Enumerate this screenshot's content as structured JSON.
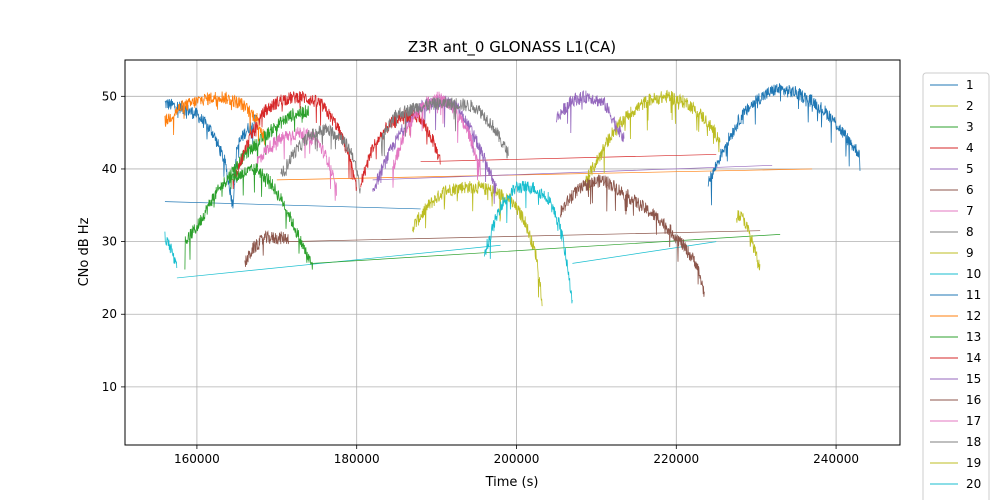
{
  "chart_data": {
    "type": "line",
    "title": "Z3R ant_0 GLONASS L1(CA)",
    "xlabel": "Time (s)",
    "ylabel": "CNo dB Hz",
    "xlim": [
      151000,
      248000
    ],
    "ylim": [
      2,
      55
    ],
    "xticks": [
      160000,
      180000,
      200000,
      220000,
      240000
    ],
    "yticks": [
      10,
      20,
      30,
      40,
      50
    ],
    "grid": true,
    "legend_position": "right-outside",
    "series": [
      {
        "name": "1",
        "color": "#1f77b4",
        "points": [
          [
            156000,
            49
          ],
          [
            158000,
            48.5
          ],
          [
            160000,
            47.5
          ],
          [
            162000,
            45
          ],
          [
            163500,
            41
          ],
          [
            164500,
            35
          ],
          [
            165000,
            43
          ],
          [
            166000,
            45
          ],
          [
            167500,
            47
          ]
        ]
      },
      {
        "name": "2",
        "color": "#bcbd22",
        "points": [
          [
            187000,
            32
          ],
          [
            189000,
            35
          ],
          [
            191000,
            37
          ],
          [
            193000,
            37.5
          ],
          [
            195000,
            37.5
          ],
          [
            197000,
            37
          ],
          [
            199000,
            36
          ],
          [
            201000,
            33
          ],
          [
            202500,
            28
          ],
          [
            203200,
            22
          ]
        ]
      },
      {
        "name": "3",
        "color": "#2ca02c",
        "points": [
          [
            158500,
            30
          ],
          [
            160000,
            32
          ],
          [
            162000,
            36
          ],
          [
            164000,
            39
          ],
          [
            166000,
            42
          ],
          [
            168000,
            44
          ],
          [
            170000,
            46
          ],
          [
            172000,
            47.5
          ],
          [
            174000,
            48
          ]
        ]
      },
      {
        "name": "4",
        "color": "#d62728",
        "points": [
          [
            164500,
            38
          ],
          [
            166500,
            44
          ],
          [
            168500,
            48
          ],
          [
            170500,
            49.5
          ],
          [
            173000,
            50
          ],
          [
            175500,
            49
          ],
          [
            177500,
            46
          ],
          [
            179000,
            42
          ],
          [
            180000,
            37
          ]
        ]
      },
      {
        "name": "5",
        "color": "#9467bd",
        "points": [
          [
            182000,
            37
          ],
          [
            184000,
            42
          ],
          [
            186000,
            46
          ],
          [
            188000,
            48.5
          ],
          [
            190500,
            49.5
          ],
          [
            192500,
            48.5
          ],
          [
            194500,
            45
          ],
          [
            196500,
            40
          ],
          [
            197500,
            37
          ]
        ]
      },
      {
        "name": "6",
        "color": "#8c564b",
        "points": [
          [
            166000,
            27
          ],
          [
            167000,
            29
          ],
          [
            168500,
            30.5
          ],
          [
            170000,
            30.5
          ],
          [
            171500,
            30.5
          ]
        ]
      },
      {
        "name": "7",
        "color": "#e377c2",
        "points": [
          [
            167500,
            41
          ],
          [
            169000,
            43
          ],
          [
            171000,
            44.5
          ],
          [
            173000,
            45
          ],
          [
            175000,
            44
          ],
          [
            176500,
            41
          ],
          [
            177500,
            37
          ]
        ]
      },
      {
        "name": "8",
        "color": "#7f7f7f",
        "points": [
          [
            170500,
            39
          ],
          [
            172000,
            42
          ],
          [
            174000,
            44.5
          ],
          [
            176000,
            45.5
          ],
          [
            178000,
            44.5
          ],
          [
            179500,
            42
          ],
          [
            180500,
            37
          ]
        ]
      },
      {
        "name": "9",
        "color": "#bcbd22",
        "points": [
          [
            208500,
            38
          ],
          [
            210000,
            41
          ],
          [
            212000,
            45
          ],
          [
            214000,
            47.5
          ],
          [
            216500,
            49.5
          ],
          [
            219000,
            50
          ],
          [
            221500,
            49
          ],
          [
            223500,
            47
          ],
          [
            225500,
            44
          ]
        ]
      },
      {
        "name": "10",
        "color": "#17becf",
        "points": [
          [
            156000,
            30.5
          ],
          [
            156800,
            29
          ],
          [
            157500,
            26
          ]
        ]
      },
      {
        "name": "11",
        "color": "#1f77b4",
        "points": [
          [
            224000,
            38
          ],
          [
            226000,
            43
          ],
          [
            228000,
            47
          ],
          [
            230000,
            49.5
          ],
          [
            232500,
            51
          ],
          [
            235000,
            50.5
          ],
          [
            237500,
            49
          ],
          [
            239500,
            47
          ],
          [
            241500,
            44
          ],
          [
            243000,
            42
          ]
        ]
      },
      {
        "name": "12",
        "color": "#ff7f0e",
        "points": [
          [
            156000,
            46.5
          ],
          [
            158000,
            48.5
          ],
          [
            160500,
            49.5
          ],
          [
            163000,
            50
          ],
          [
            165500,
            49
          ],
          [
            167500,
            47
          ],
          [
            168500,
            44
          ]
        ]
      },
      {
        "name": "13",
        "color": "#2ca02c",
        "points": [
          [
            164000,
            38.5
          ],
          [
            166000,
            39.5
          ],
          [
            167500,
            40
          ],
          [
            169000,
            38.5
          ],
          [
            171000,
            35
          ],
          [
            173000,
            30
          ],
          [
            174500,
            26.5
          ]
        ]
      },
      {
        "name": "14",
        "color": "#d62728",
        "points": [
          [
            180500,
            38
          ],
          [
            182000,
            43
          ],
          [
            184000,
            46
          ],
          [
            186000,
            47.5
          ],
          [
            188000,
            47
          ],
          [
            189500,
            44
          ],
          [
            190500,
            41
          ]
        ]
      },
      {
        "name": "15",
        "color": "#9467bd",
        "points": [
          [
            205000,
            47
          ],
          [
            207000,
            49.5
          ],
          [
            209000,
            50
          ],
          [
            211000,
            49
          ],
          [
            212500,
            46
          ],
          [
            213500,
            44
          ]
        ]
      },
      {
        "name": "16",
        "color": "#8c564b",
        "points": [
          [
            205500,
            34
          ],
          [
            207000,
            36.5
          ],
          [
            209000,
            38
          ],
          [
            211000,
            38.5
          ],
          [
            213000,
            37
          ],
          [
            215500,
            35
          ],
          [
            218000,
            33
          ],
          [
            220500,
            30
          ],
          [
            222500,
            27
          ],
          [
            223500,
            23
          ]
        ]
      },
      {
        "name": "17",
        "color": "#e377c2",
        "points": [
          [
            184500,
            40
          ],
          [
            186000,
            45
          ],
          [
            188000,
            48.5
          ],
          [
            190000,
            50
          ],
          [
            192000,
            48.5
          ],
          [
            194000,
            45
          ],
          [
            195500,
            40
          ]
        ]
      },
      {
        "name": "18",
        "color": "#7f7f7f",
        "points": [
          [
            183000,
            44
          ],
          [
            185000,
            47.5
          ],
          [
            187500,
            48.5
          ],
          [
            190000,
            49
          ],
          [
            192500,
            49
          ],
          [
            195000,
            48.5
          ],
          [
            197000,
            46
          ],
          [
            199000,
            42
          ]
        ]
      },
      {
        "name": "19",
        "color": "#bcbd22",
        "points": [
          [
            227500,
            34
          ],
          [
            228500,
            33
          ],
          [
            229500,
            30
          ],
          [
            230500,
            26
          ]
        ]
      },
      {
        "name": "20",
        "color": "#17becf",
        "points": [
          [
            196000,
            28.5
          ],
          [
            198000,
            35
          ],
          [
            200000,
            37.5
          ],
          [
            202000,
            37.5
          ],
          [
            204000,
            36
          ],
          [
            205500,
            32
          ],
          [
            206500,
            26
          ],
          [
            207000,
            21
          ]
        ]
      }
    ],
    "connector_lines": [
      {
        "color": "#17becf",
        "from": [
          157500,
          25
        ],
        "to": [
          198000,
          29.5
        ]
      },
      {
        "color": "#1f77b4",
        "from": [
          156000,
          35.5
        ],
        "to": [
          188000,
          34.5
        ]
      },
      {
        "color": "#2ca02c",
        "from": [
          174500,
          27
        ],
        "to": [
          233000,
          31
        ]
      },
      {
        "color": "#8c564b",
        "from": [
          171500,
          30
        ],
        "to": [
          230500,
          31.5
        ]
      },
      {
        "color": "#ff7f0e",
        "from": [
          170000,
          38.5
        ],
        "to": [
          237000,
          40
        ]
      },
      {
        "color": "#d62728",
        "from": [
          188000,
          41
        ],
        "to": [
          225000,
          42
        ]
      },
      {
        "color": "#9467bd",
        "from": [
          182000,
          38.5
        ],
        "to": [
          232000,
          40.5
        ]
      },
      {
        "color": "#17becf",
        "from": [
          207000,
          27
        ],
        "to": [
          225000,
          30
        ]
      }
    ]
  }
}
